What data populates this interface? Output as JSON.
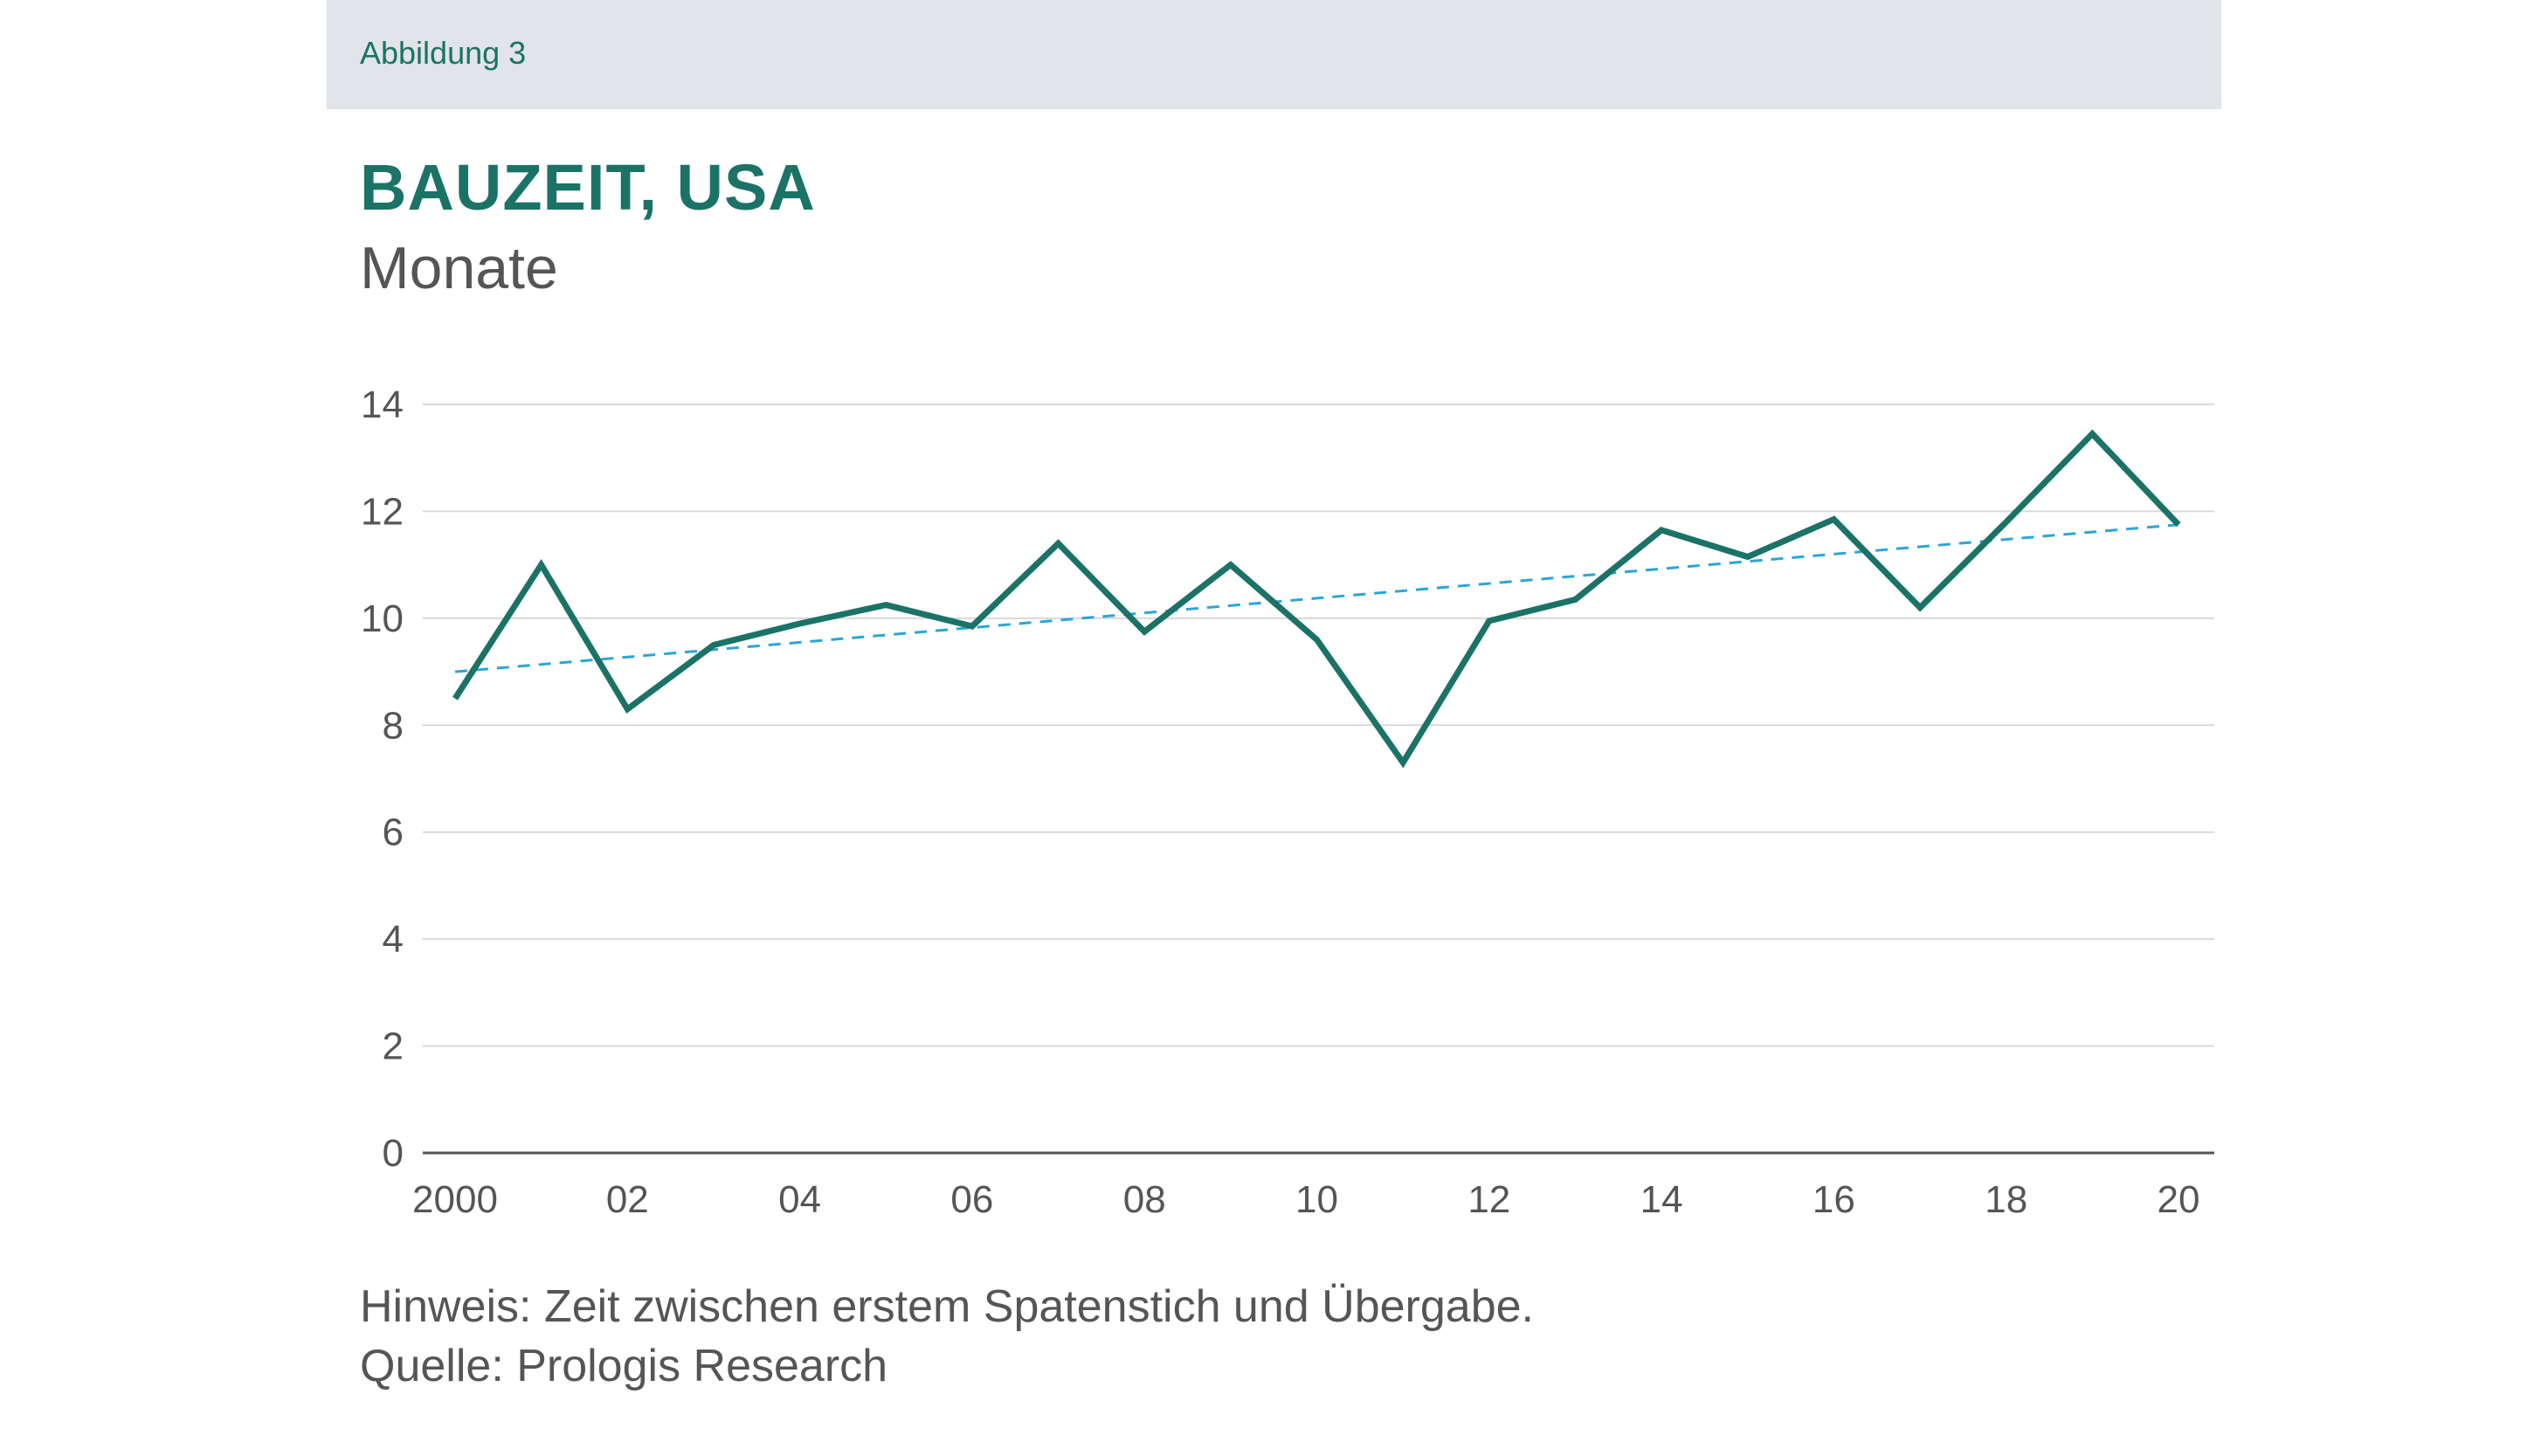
{
  "header": {
    "figure_label": "Abbildung 3"
  },
  "colors": {
    "accent": "#1a7366",
    "trend": "#2aa6d6",
    "grid": "#d9d9d9",
    "axis": "#555555",
    "label_bar": "#e1e4e8"
  },
  "chart_data": {
    "type": "line",
    "title": "BAUZEIT, USA",
    "subtitle": "Monate",
    "xlabel": "",
    "ylabel": "",
    "ylim": [
      0,
      14
    ],
    "xlim": [
      2000,
      2020
    ],
    "grid": true,
    "y_ticks": [
      0,
      2,
      4,
      6,
      8,
      10,
      12,
      14
    ],
    "x_ticks": [
      {
        "value": 2000,
        "label": "2000"
      },
      {
        "value": 2002,
        "label": "02"
      },
      {
        "value": 2004,
        "label": "04"
      },
      {
        "value": 2006,
        "label": "06"
      },
      {
        "value": 2008,
        "label": "08"
      },
      {
        "value": 2010,
        "label": "10"
      },
      {
        "value": 2012,
        "label": "12"
      },
      {
        "value": 2014,
        "label": "14"
      },
      {
        "value": 2016,
        "label": "16"
      },
      {
        "value": 2018,
        "label": "18"
      },
      {
        "value": 2020,
        "label": "20"
      }
    ],
    "series": [
      {
        "name": "Bauzeit",
        "style": "solid",
        "x": [
          2000,
          2001,
          2002,
          2003,
          2004,
          2005,
          2006,
          2007,
          2008,
          2009,
          2010,
          2011,
          2012,
          2013,
          2014,
          2015,
          2016,
          2017,
          2018,
          2019,
          2020
        ],
        "values": [
          8.5,
          11.0,
          8.3,
          9.5,
          9.9,
          10.25,
          9.85,
          11.4,
          9.75,
          11.0,
          9.6,
          7.3,
          9.95,
          10.35,
          11.65,
          11.15,
          11.85,
          10.2,
          11.8,
          13.45,
          11.75
        ]
      },
      {
        "name": "Trend",
        "style": "dashed",
        "x": [
          2000,
          2020
        ],
        "values": [
          9.0,
          11.75
        ]
      }
    ]
  },
  "footer": {
    "note": "Hinweis: Zeit zwischen erstem Spatenstich und Übergabe.",
    "source": "Quelle: Prologis Research"
  }
}
